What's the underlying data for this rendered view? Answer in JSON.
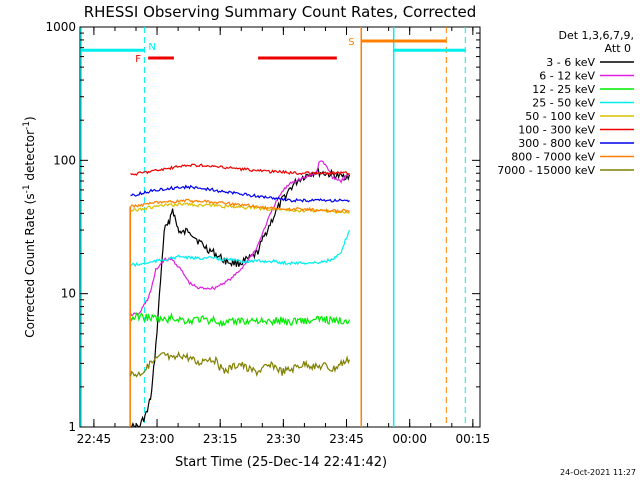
{
  "chart_data": {
    "type": "line",
    "title": "RHESSI Observing Summary Count Rates, Corrected",
    "xlabel": "Start Time (25-Dec-14 22:41:42)",
    "ylabel": "Corrected Count Rate (s",
    "ylabel_sup1": "-1",
    "ylabel_mid": " detector",
    "ylabel_sup2": "-1",
    "ylabel_end": ")",
    "yscale": "log",
    "ylim": [
      1,
      1000
    ],
    "xlim_minutes": [
      0,
      95
    ],
    "y_tick_labels": [
      "1",
      "10",
      "100",
      "1000"
    ],
    "x_ticks": [
      {
        "label": "22:45",
        "minute": 3.3
      },
      {
        "label": "23:00",
        "minute": 18.3
      },
      {
        "label": "23:15",
        "minute": 33.3
      },
      {
        "label": "23:30",
        "minute": 48.3
      },
      {
        "label": "23:45",
        "minute": 63.3
      },
      {
        "label": "00:00",
        "minute": 78.3
      },
      {
        "label": "00:15",
        "minute": 93.3
      }
    ],
    "legend": {
      "header": [
        "Det 1,3,6,7,9,",
        "Att 0"
      ],
      "placement": "right",
      "entries": [
        {
          "label": "3 - 6 keV",
          "color": "#000000"
        },
        {
          "label": "6 - 12 keV",
          "color": "#e020e0"
        },
        {
          "label": "12 - 25 keV",
          "color": "#00ee00"
        },
        {
          "label": "25 - 50 keV",
          "color": "#00eeee"
        },
        {
          "label": "50 - 100 keV",
          "color": "#d8c000"
        },
        {
          "label": "100 - 300 keV",
          "color": "#ee0000"
        },
        {
          "label": "300 - 800 keV",
          "color": "#0000ee"
        },
        {
          "label": "800 - 7000 keV",
          "color": "#ff8000"
        },
        {
          "label": "7000 - 15000 keV",
          "color": "#808000"
        }
      ]
    },
    "flags": [
      {
        "label": "F",
        "color": "#ee0000",
        "minute_start": 16.2,
        "minute_end": 22.3,
        "row": "upper"
      },
      {
        "label": "",
        "color": "#ee0000",
        "minute_start": 42.3,
        "minute_end": 61.0,
        "row": "upper"
      },
      {
        "label": "S",
        "color": "#ff8000",
        "minute_start": 66.8,
        "minute_end": 87.0,
        "row": "top"
      }
    ],
    "region_markers": [
      {
        "label": "N",
        "color": "#00eeee",
        "minute_start": 15.3,
        "style": "dashed-vertical"
      }
    ],
    "series": [
      {
        "name": "3 - 6 keV",
        "color": "#000000",
        "x": [
          12,
          14,
          16,
          17,
          18,
          20,
          21,
          22,
          23,
          24,
          26,
          28,
          30,
          32,
          34,
          36,
          38,
          40,
          42,
          44,
          46,
          48,
          50,
          52,
          54,
          56,
          58,
          60,
          62,
          64
        ],
        "values": [
          1,
          1,
          1.3,
          1.8,
          4,
          30,
          33,
          44,
          32,
          28,
          30,
          25,
          22,
          20,
          18,
          17,
          17,
          18,
          20,
          28,
          38,
          50,
          62,
          72,
          78,
          82,
          80,
          78,
          75,
          78
        ]
      },
      {
        "name": "6 - 12 keV",
        "color": "#e020e0",
        "x": [
          12,
          14,
          15,
          16,
          17,
          18,
          20,
          22,
          24,
          26,
          28,
          30,
          32,
          34,
          36,
          38,
          40,
          42,
          44,
          46,
          48,
          50,
          52,
          54,
          56,
          57,
          58,
          59,
          60,
          62,
          64
        ],
        "values": [
          7,
          7,
          8,
          9,
          11,
          15,
          18,
          18,
          15,
          12,
          11,
          11,
          11,
          12,
          13,
          15,
          18,
          22,
          32,
          45,
          58,
          68,
          72,
          75,
          80,
          100,
          95,
          85,
          75,
          70,
          80
        ]
      },
      {
        "name": "12 - 25 keV",
        "color": "#00ee00",
        "x": [
          12,
          14,
          16,
          18,
          20,
          22,
          24,
          26,
          28,
          30,
          32,
          34,
          36,
          38,
          40,
          42,
          44,
          46,
          48,
          50,
          52,
          54,
          56,
          58,
          60,
          62,
          64
        ],
        "values": [
          6.5,
          6.8,
          6.6,
          6.5,
          6.3,
          6.6,
          6.4,
          6.2,
          6.5,
          6.3,
          6.4,
          5.8,
          6.1,
          6.3,
          6.2,
          6.4,
          6.0,
          6.2,
          6.3,
          6.1,
          6.4,
          6.2,
          6.3,
          6.5,
          6.2,
          6.3,
          6.4
        ]
      },
      {
        "name": "25 - 50 keV",
        "color": "#00eeee",
        "x": [
          12,
          14,
          16,
          18,
          20,
          22,
          24,
          26,
          28,
          30,
          32,
          34,
          36,
          38,
          40,
          42,
          44,
          46,
          48,
          50,
          52,
          54,
          56,
          58,
          60,
          62,
          63,
          64
        ],
        "values": [
          16.5,
          16.5,
          17,
          17.5,
          18,
          18.5,
          19,
          18.5,
          18.5,
          18.5,
          18.5,
          18,
          18,
          17.5,
          17.5,
          17.5,
          17.5,
          17.5,
          17,
          17,
          17,
          17,
          17,
          17.5,
          18,
          20,
          25,
          30
        ]
      },
      {
        "name": "50 - 100 keV",
        "color": "#d8c000",
        "x": [
          12,
          14,
          16,
          18,
          20,
          22,
          24,
          26,
          28,
          30,
          32,
          34,
          36,
          38,
          40,
          42,
          44,
          46,
          48,
          50,
          52,
          54,
          56,
          58,
          60,
          62,
          64
        ],
        "values": [
          42,
          43,
          44,
          45,
          46,
          46,
          47,
          47,
          46,
          46,
          46,
          45,
          45,
          45,
          44,
          44,
          43,
          43,
          43,
          42,
          42,
          42,
          42,
          42,
          41,
          41,
          41
        ]
      },
      {
        "name": "100 - 300 keV",
        "color": "#ee0000",
        "x": [
          12,
          14,
          16,
          18,
          20,
          22,
          24,
          26,
          28,
          30,
          32,
          34,
          36,
          38,
          40,
          42,
          44,
          46,
          48,
          50,
          52,
          54,
          56,
          58,
          60,
          62,
          64
        ],
        "values": [
          78,
          80,
          82,
          84,
          86,
          88,
          90,
          92,
          92,
          90,
          90,
          88,
          88,
          86,
          85,
          84,
          83,
          82,
          82,
          81,
          80,
          80,
          80,
          80,
          80,
          80,
          80
        ]
      },
      {
        "name": "300 - 800 keV",
        "color": "#0000ee",
        "x": [
          12,
          14,
          16,
          18,
          20,
          22,
          24,
          26,
          28,
          30,
          32,
          34,
          36,
          38,
          40,
          42,
          44,
          46,
          48,
          50,
          52,
          54,
          56,
          58,
          60,
          62,
          64
        ],
        "values": [
          54,
          56,
          58,
          60,
          61,
          62,
          63,
          63,
          62,
          61,
          60,
          58,
          57,
          56,
          55,
          54,
          53,
          52,
          51,
          50,
          50,
          50,
          50,
          50,
          50,
          50,
          50
        ]
      },
      {
        "name": "800 - 7000 keV",
        "color": "#ff8000",
        "x": [
          11.9,
          12,
          14,
          16,
          18,
          20,
          22,
          24,
          26,
          28,
          30,
          32,
          34,
          36,
          38,
          40,
          42,
          44,
          46,
          48,
          50,
          52,
          54,
          56,
          58,
          60,
          62,
          64
        ],
        "values": [
          1,
          45,
          46,
          47,
          48,
          48,
          49,
          50,
          50,
          49,
          49,
          48,
          48,
          47,
          46,
          46,
          45,
          44,
          44,
          43,
          43,
          43,
          43,
          42,
          42,
          42,
          42,
          42
        ]
      },
      {
        "name": "7000 - 15000 keV",
        "color": "#808000",
        "x": [
          12,
          14,
          16,
          18,
          20,
          22,
          24,
          26,
          28,
          30,
          32,
          34,
          36,
          38,
          40,
          42,
          44,
          46,
          48,
          50,
          52,
          54,
          56,
          58,
          60,
          62,
          64
        ],
        "values": [
          2.5,
          2.5,
          2.8,
          3.2,
          3.5,
          3.2,
          3.5,
          3.3,
          3.0,
          3.3,
          3.2,
          2.6,
          2.8,
          3.0,
          2.7,
          2.6,
          2.8,
          2.9,
          2.6,
          2.7,
          2.9,
          3.0,
          2.8,
          2.9,
          2.7,
          3.0,
          3.2
        ]
      }
    ]
  },
  "footer": {
    "date_stamp": "24-Oct-2021 11:27"
  }
}
